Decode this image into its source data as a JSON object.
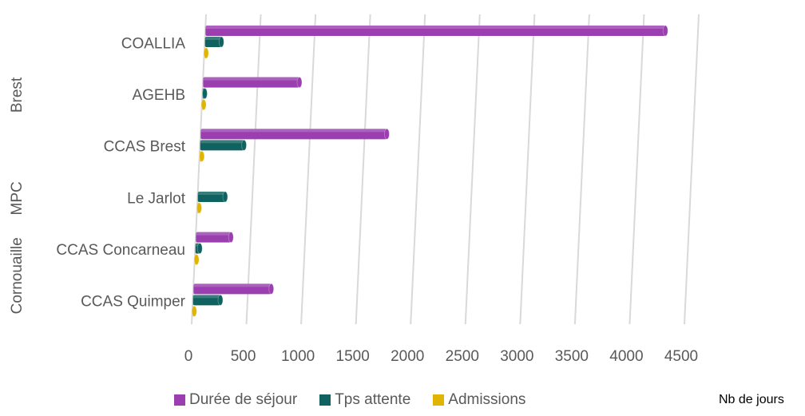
{
  "chart_data": {
    "type": "bar",
    "orientation": "horizontal",
    "categories": [
      "COALLIA",
      "AGEHB",
      "CCAS Brest",
      "Le Jarlot",
      "CCAS Concarneau",
      "CCAS Quimper"
    ],
    "groups": [
      {
        "label": "Brest",
        "categories": [
          "COALLIA",
          "AGEHB",
          "CCAS Brest"
        ]
      },
      {
        "label": "MPC",
        "categories": [
          "Le Jarlot"
        ]
      },
      {
        "label": "Cornouaille",
        "categories": [
          "CCAS Concarneau",
          "CCAS Quimper"
        ]
      }
    ],
    "series": [
      {
        "name": "Durée de séjour",
        "color": "#9b3fb0",
        "values": [
          4200,
          880,
          1700,
          0,
          320,
          710
        ]
      },
      {
        "name": "Tps attente",
        "color": "#0f6260",
        "values": [
          150,
          20,
          400,
          250,
          40,
          250
        ]
      },
      {
        "name": "Admissions",
        "color": "#e0b400",
        "values": [
          15,
          12,
          20,
          18,
          15,
          16
        ]
      }
    ],
    "xlim": [
      0,
      4500
    ],
    "xticks": [
      0,
      500,
      1000,
      1500,
      2000,
      2500,
      3000,
      3500,
      4000,
      4500
    ],
    "xlabel": "Nb de jours",
    "grid": true,
    "legend_position": "bottom"
  }
}
